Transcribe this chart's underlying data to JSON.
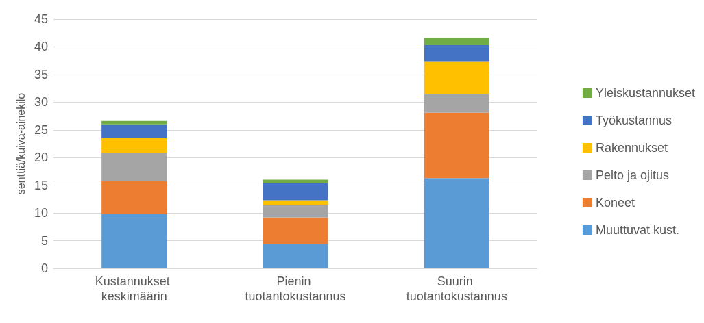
{
  "chart_data": {
    "type": "bar",
    "stacked": true,
    "ylabel": "senttiä/kuiva-ainekilo",
    "categories": [
      "Kustannukset keskimäärin",
      "Pienin tuotantokustannus",
      "Suurin tuotantokustannus"
    ],
    "series": [
      {
        "name": "Muuttuvat kust.",
        "color": "#5b9bd5",
        "values": [
          9.8,
          4.4,
          16.3
        ]
      },
      {
        "name": "Koneet",
        "color": "#ed7d31",
        "values": [
          5.9,
          4.8,
          11.8
        ]
      },
      {
        "name": "Pelto ja ojitus",
        "color": "#a5a5a5",
        "values": [
          5.2,
          2.3,
          3.4
        ]
      },
      {
        "name": "Rakennukset",
        "color": "#ffc000",
        "values": [
          2.6,
          0.8,
          5.9
        ]
      },
      {
        "name": "Työkustannus",
        "color": "#4472c4",
        "values": [
          2.5,
          3.1,
          2.9
        ]
      },
      {
        "name": "Yleiskustannukset",
        "color": "#70ad47",
        "values": [
          0.6,
          0.6,
          1.3
        ]
      }
    ],
    "ylim": [
      0,
      45
    ],
    "yticks": [
      0,
      5,
      10,
      15,
      20,
      25,
      30,
      35,
      40,
      45
    ],
    "grid": "y",
    "legend": "right"
  }
}
